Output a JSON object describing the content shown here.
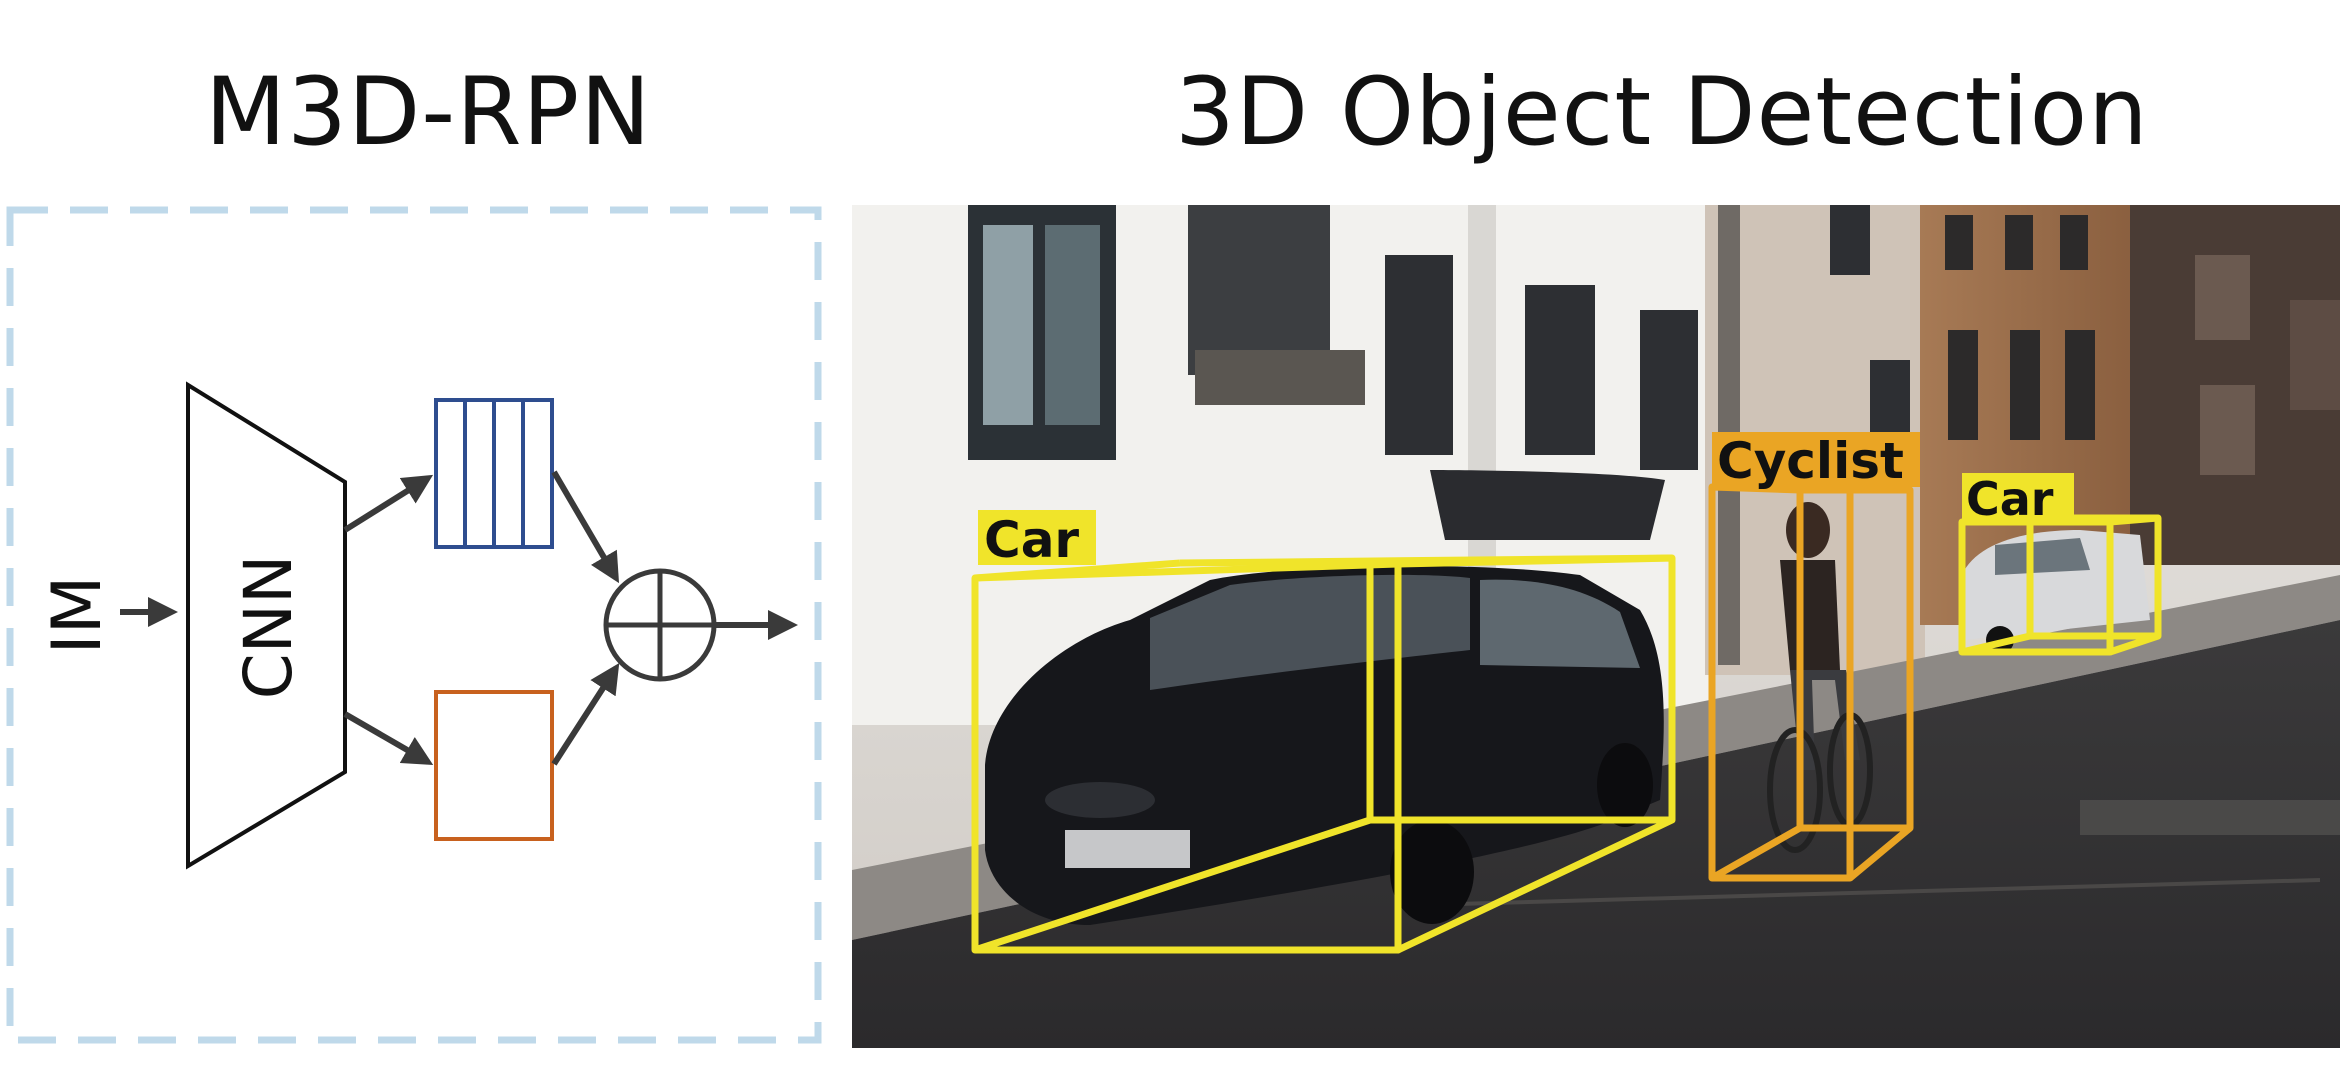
{
  "left_title": "M3D-RPN",
  "right_title": "3D Object Detection",
  "diagram": {
    "input_label": "IM",
    "network_label": "CNN"
  },
  "detections": [
    {
      "label": "Car",
      "color": "#f0e42a"
    },
    {
      "label": "Cyclist",
      "color": "#eaa524"
    },
    {
      "label": "Car",
      "color": "#f0e42a"
    }
  ],
  "colors": {
    "dashed_border": "#bfd9ea",
    "feature_map_blue": "#2e4d8f",
    "feature_map_orange": "#c8611e",
    "arrow": "#3a3a3a",
    "car_box": "#f0e42a",
    "cyclist_box": "#eaa524"
  }
}
